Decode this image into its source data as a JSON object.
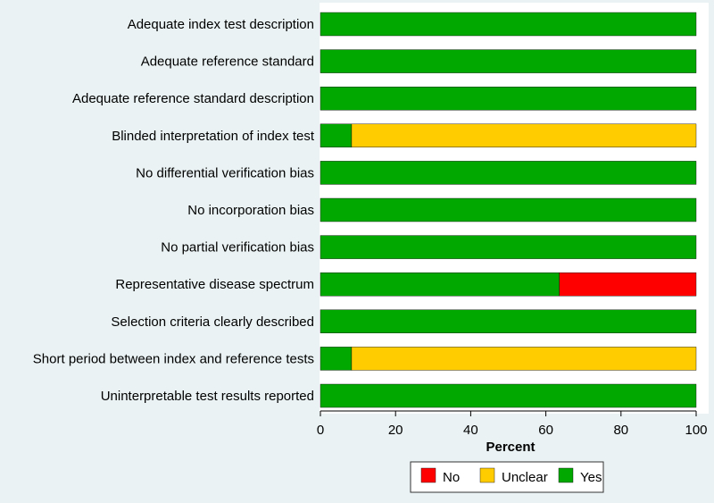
{
  "chart_data": {
    "type": "bar",
    "orientation": "horizontal",
    "stacked": true,
    "categories": [
      "Adequate index test description",
      "Adequate reference standard",
      "Adequate reference standard description",
      "Blinded interpretation of index test",
      "No differential verification bias",
      "No incorporation bias",
      "No partial verification bias",
      "Representative disease spectrum",
      "Selection criteria clearly described",
      "Short period between index and reference tests",
      "Uninterpretable test results reported"
    ],
    "series": [
      {
        "name": "Yes",
        "color": "#00a800",
        "values": [
          100,
          100,
          100,
          8.3,
          100,
          100,
          100,
          63.6,
          100,
          8.3,
          100
        ]
      },
      {
        "name": "Unclear",
        "color": "#ffcc00",
        "values": [
          0,
          0,
          0,
          91.7,
          0,
          0,
          0,
          0,
          0,
          91.7,
          0
        ]
      },
      {
        "name": "No",
        "color": "#ff0000",
        "values": [
          0,
          0,
          0,
          0,
          0,
          0,
          0,
          36.4,
          0,
          0,
          0
        ]
      }
    ],
    "legend_order": [
      "No",
      "Unclear",
      "Yes"
    ],
    "xlabel": "Percent",
    "xlim": [
      0,
      100
    ],
    "xticks": [
      0,
      20,
      40,
      60,
      80,
      100
    ],
    "grid": false,
    "legend_position": "bottom"
  }
}
